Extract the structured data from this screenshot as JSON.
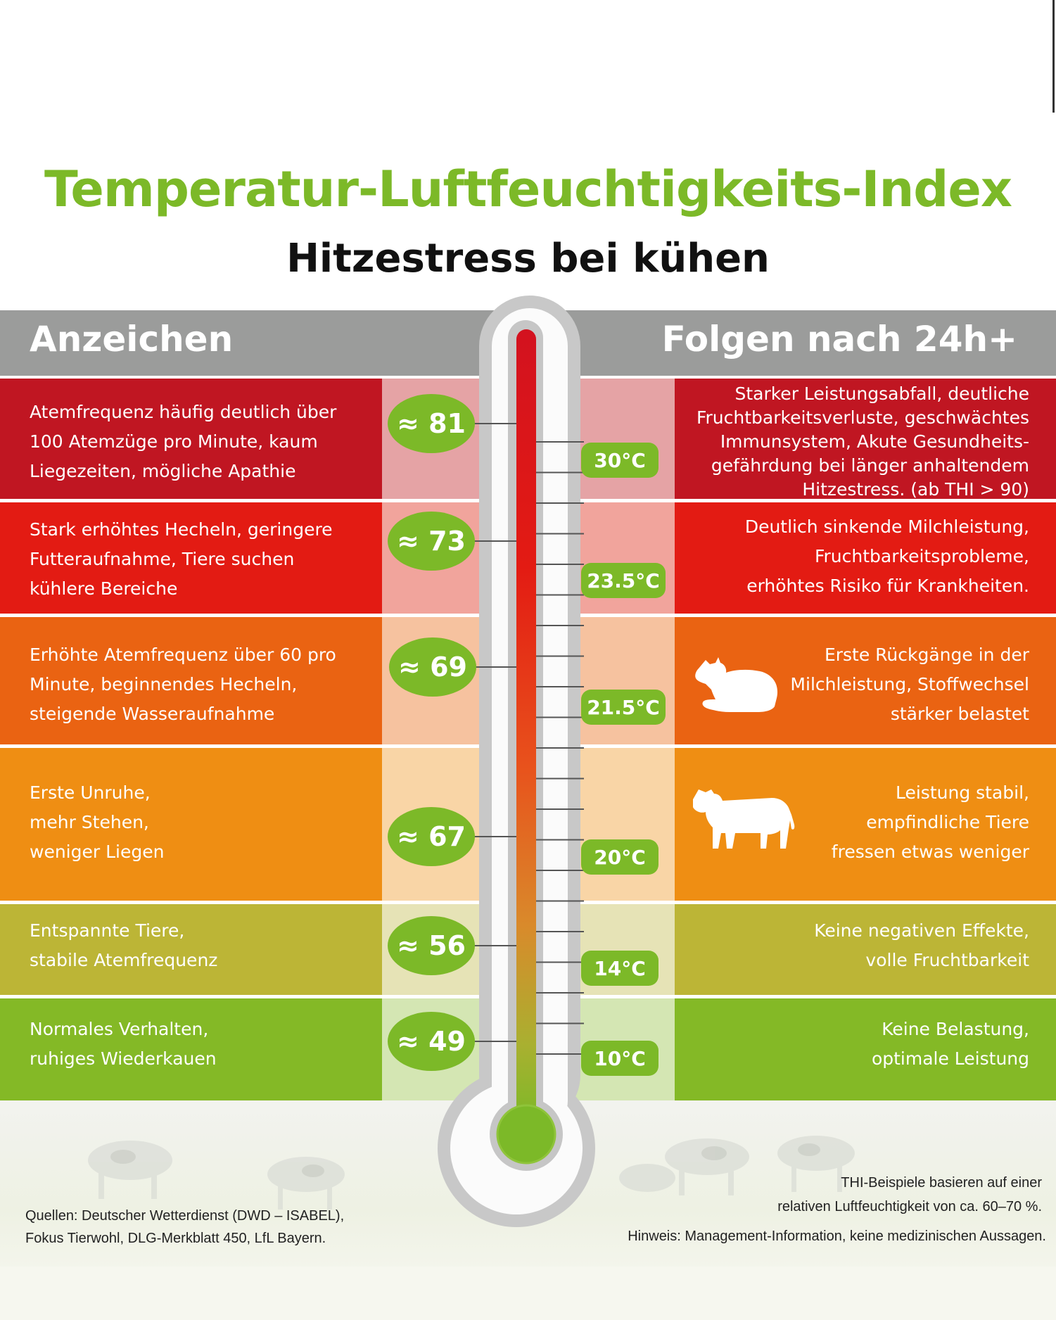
{
  "title": "Temperatur-Luftfeuchtigkeits-Index",
  "subtitle": "Hitzestress bei kühen",
  "header": {
    "left": "Anzeichen",
    "right": "Folgen nach 24h+"
  },
  "rows": [
    {
      "signs": "Atemfrequenz häufig deutlich über\n100 Atemzüge pro Minute, kaum\nLiegezeiten, mögliche Apathie",
      "thi": "≈ 81",
      "temp": "30°C",
      "consequences": "Starker Leistungsabfall, deutliche\nFruchtbarkeitsverluste, geschwächtes\nImmunsystem, Akute Gesundheits-\ngefährdung bei länger anhaltendem\nHitzestress. (ab THI > 90)",
      "color": "#c01622",
      "mid_color": "#e5a3a5"
    },
    {
      "signs": "Stark erhöhtes Hecheln, geringere\nFutteraufnahme, Tiere suchen\nkühlere Bereiche",
      "thi": "≈ 73",
      "temp": "23.5°C",
      "consequences": "Deutlich sinkende Milchleistung,\nFruchtbarkeitsprobleme,\nerhöhtes Risiko für Krankheiten.",
      "color": "#e31b13",
      "mid_color": "#f1a49c"
    },
    {
      "signs": "Erhöhte Atemfrequenz über 60 pro\nMinute, beginnendes Hecheln,\nsteigende Wasseraufnahme",
      "thi": "≈ 69",
      "temp": "21.5°C",
      "consequences": "Erste Rückgänge in der\nMilchleistung, Stoffwechsel\nstärker belastet",
      "color": "#ea6312",
      "mid_color": "#f6c29f"
    },
    {
      "signs": "Erste Unruhe,\nmehr Stehen,\nweniger Liegen",
      "thi": "≈ 67",
      "temp": "20°C",
      "consequences": "Leistung stabil,\nempfindliche Tiere\nfressen etwas weniger",
      "color": "#ef8e13",
      "mid_color": "#f9d5a6"
    },
    {
      "signs": "Entspannte Tiere,\nstabile Atemfrequenz",
      "thi": "≈ 56",
      "temp": "14°C",
      "consequences": "Keine negativen Effekte,\nvolle Fruchtbarkeit",
      "color": "#bcb536",
      "mid_color": "#e6e3b6"
    },
    {
      "signs": "Normales Verhalten,\nruhiges Wiederkauen",
      "thi": "≈ 49",
      "temp": "10°C",
      "consequences": "Keine Belastung,\noptimale Leistung",
      "color": "#84b926",
      "mid_color": "#d4e6b3"
    }
  ],
  "footer": {
    "sources": "Quellen: Deutscher Wetterdienst (DWD – ISABEL),\nFokus Tierwohl, DLG-Merkblatt 450, LfL Bayern.",
    "humidity_note": "THI-Beispiele basieren auf einer\nrelativen Luftfeuchtigkeit von ca. 60–70 %.",
    "disclaimer": "Hinweis: Management-Information, keine medizinischen Aussagen."
  },
  "colors": {
    "accent_green": "#7cb928",
    "header_gray": "#9b9c9b",
    "mercury_top": "#d3121f",
    "mercury_bottom": "#7cb928"
  },
  "icons": [
    "lying-cow-icon",
    "standing-cow-icon",
    "thermometer-icon"
  ]
}
